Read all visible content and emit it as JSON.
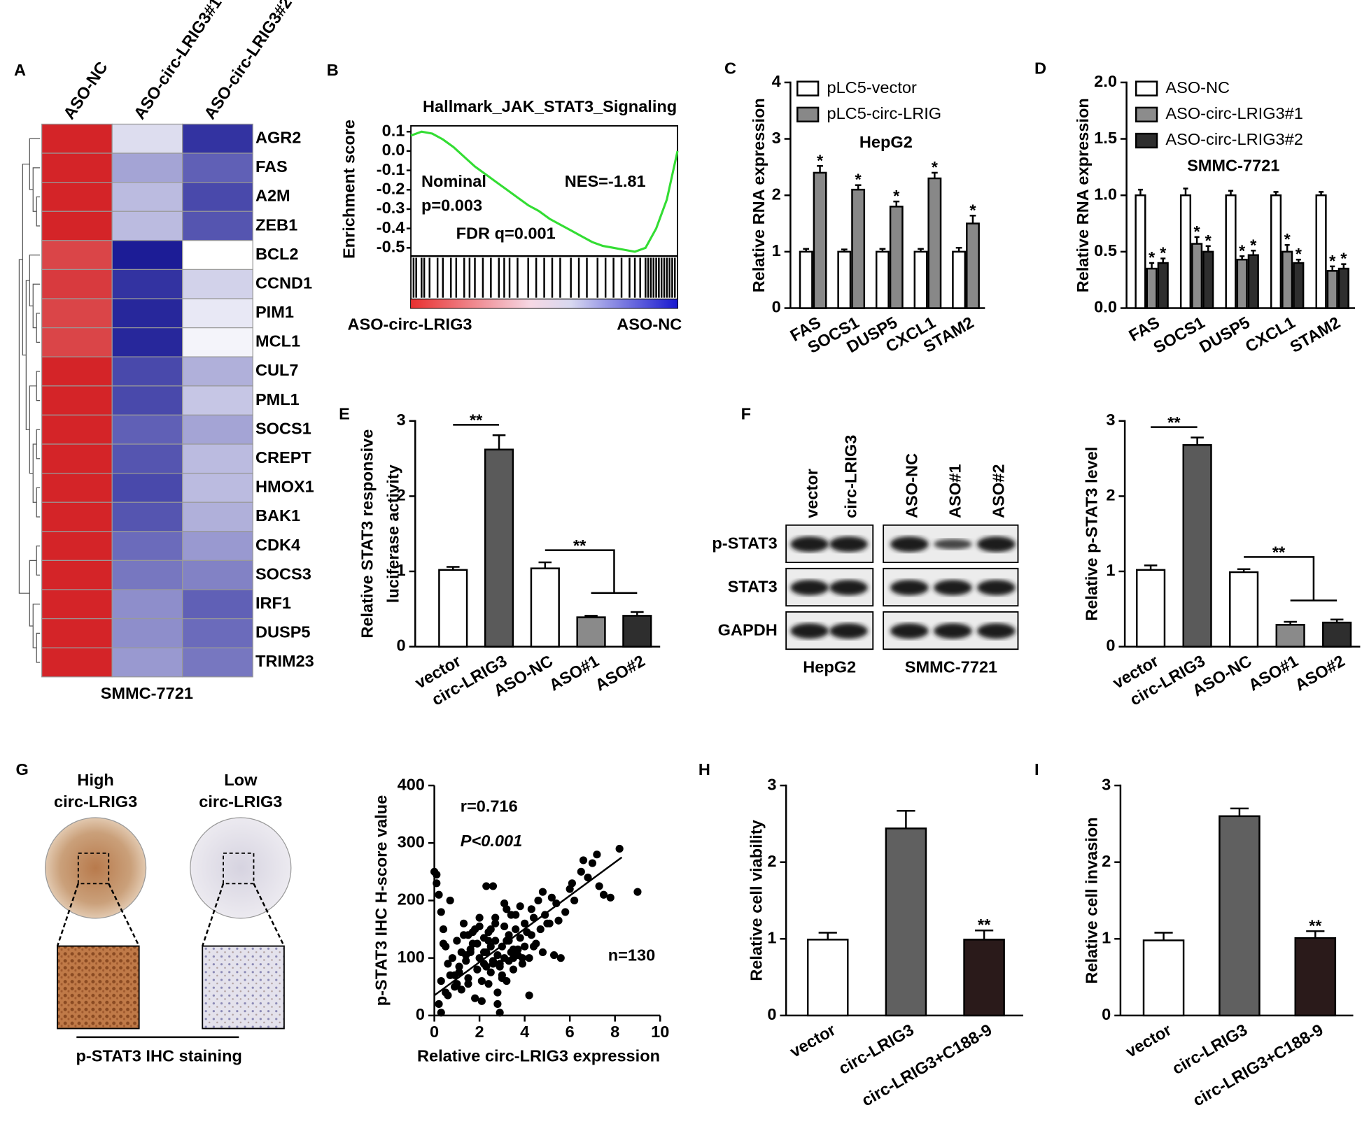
{
  "chart_data": [
    {
      "type": "heatmap",
      "panel": "A",
      "columns": [
        "ASO-NC",
        "ASO-circ-LRIG3#1",
        "ASO-circ-LRIG3#2"
      ],
      "rows": [
        "AGR2",
        "FAS",
        "A2M",
        "ZEB1",
        "BCL2",
        "CCND1",
        "PIM1",
        "MCL1",
        "CUL7",
        "PML1",
        "SOCS1",
        "CREPT",
        "HMOX1",
        "BAK1",
        "CDK4",
        "SOCS3",
        "IRF1",
        "DUSP5",
        "TRIM23"
      ],
      "row_label_colors": [
        "#000000",
        "#e02020",
        "#e02020",
        "#000000",
        "#000000",
        "#000000",
        "#e02020",
        "#000000",
        "#000000",
        "#000000",
        "#e02020",
        "#000000",
        "#e02020",
        "#e02020",
        "#000000",
        "#e02020",
        "#e02020",
        "#e02020",
        "#000000"
      ],
      "values": [
        [
          1,
          -0.15,
          -0.9
        ],
        [
          1,
          -0.4,
          -0.7
        ],
        [
          1,
          -0.3,
          -0.8
        ],
        [
          1,
          -0.3,
          -0.75
        ],
        [
          0.85,
          -1,
          0
        ],
        [
          0.9,
          -0.9,
          -0.2
        ],
        [
          0.85,
          -0.95,
          -0.1
        ],
        [
          0.85,
          -0.95,
          -0.05
        ],
        [
          1,
          -0.8,
          -0.35
        ],
        [
          1,
          -0.8,
          -0.25
        ],
        [
          1,
          -0.7,
          -0.4
        ],
        [
          1,
          -0.75,
          -0.3
        ],
        [
          1,
          -0.8,
          -0.3
        ],
        [
          1,
          -0.75,
          -0.35
        ],
        [
          1,
          -0.65,
          -0.45
        ],
        [
          1,
          -0.6,
          -0.55
        ],
        [
          1,
          -0.5,
          -0.7
        ],
        [
          1,
          -0.5,
          -0.65
        ],
        [
          1,
          -0.45,
          -0.6
        ]
      ],
      "caption": "SMMC-7721"
    },
    {
      "type": "gsea",
      "panel": "B",
      "title": "Hallmark_JAK_STAT3_Signaling",
      "ylabel": "Enrichment score",
      "color": "#33dd33",
      "ylim": [
        -0.52,
        0.13
      ],
      "yticks": [
        0.1,
        {
          "value": 0,
          "label": "0.0"
        },
        -0.1,
        -0.2,
        -0.3,
        -0.4,
        -0.5
      ],
      "values": [
        0.08,
        0.1,
        0.09,
        0.06,
        0.02,
        -0.03,
        -0.08,
        -0.12,
        -0.16,
        -0.2,
        -0.24,
        -0.28,
        -0.31,
        -0.35,
        -0.38,
        -0.41,
        -0.44,
        -0.47,
        -0.49,
        -0.5,
        -0.51,
        -0.52,
        -0.5,
        -0.4,
        -0.25,
        0
      ],
      "hits": [
        0.01,
        0.02,
        0.04,
        0.05,
        0.07,
        0.1,
        0.12,
        0.15,
        0.17,
        0.2,
        0.22,
        0.24,
        0.27,
        0.3,
        0.33,
        0.35,
        0.37,
        0.4,
        0.44,
        0.47,
        0.5,
        0.53,
        0.56,
        0.6,
        0.63,
        0.66,
        0.7,
        0.73,
        0.76,
        0.79,
        0.82,
        0.84,
        0.86,
        0.88,
        0.89,
        0.9,
        0.91,
        0.92,
        0.93,
        0.94,
        0.95,
        0.96,
        0.97,
        0.98,
        0.99
      ],
      "annotations": [
        "Nominal",
        "p=0.003",
        "NES=-1.81",
        "FDR q=0.001"
      ],
      "x_labels": [
        "ASO-circ-LRIG3",
        "ASO-NC"
      ]
    },
    {
      "type": "bar",
      "panel": "C",
      "subtitle": "HepG2",
      "ylabel": "Relative RNA expression",
      "categories": [
        "FAS",
        "SOCS1",
        "DUSP5",
        "CXCL1",
        "STAM2"
      ],
      "ylim": [
        0,
        4
      ],
      "yticks": [
        0,
        1,
        2,
        3,
        4
      ],
      "series": [
        {
          "name": "pLC5-vector",
          "color": "#ffffff",
          "values": [
            1,
            1,
            1,
            1,
            1
          ],
          "errors": [
            0.05,
            0.04,
            0.05,
            0.05,
            0.07
          ]
        },
        {
          "name": "pLC5-circ-LRIG",
          "color": "#888888",
          "values": [
            2.4,
            2.1,
            1.8,
            2.3,
            1.5
          ],
          "errors": [
            0.12,
            0.08,
            0.09,
            0.1,
            0.14
          ],
          "labels": [
            "*",
            "*",
            "*",
            "*",
            "*"
          ]
        }
      ]
    },
    {
      "type": "bar",
      "panel": "D",
      "subtitle": "SMMC-7721",
      "ylabel": "Relative RNA expression",
      "categories": [
        "FAS",
        "SOCS1",
        "DUSP5",
        "CXCL1",
        "STAM2"
      ],
      "ylim": [
        0,
        2
      ],
      "yticks": [
        {
          "value": 0,
          "label": "0.0"
        },
        0.5,
        {
          "value": 1,
          "label": "1.0"
        },
        1.5,
        {
          "value": 2,
          "label": "2.0"
        }
      ],
      "series": [
        {
          "name": "ASO-NC",
          "color": "#ffffff",
          "values": [
            1,
            1,
            1,
            1,
            1
          ],
          "errors": [
            0.05,
            0.06,
            0.04,
            0.03,
            0.03
          ]
        },
        {
          "name": "ASO-circ-LRIG3#1",
          "color": "#8c8c8c",
          "values": [
            0.35,
            0.57,
            0.43,
            0.5,
            0.33
          ],
          "errors": [
            0.05,
            0.06,
            0.03,
            0.06,
            0.04
          ],
          "labels": [
            "*",
            "*",
            "*",
            "*",
            "*"
          ]
        },
        {
          "name": "ASO-circ-LRIG3#2",
          "color": "#2e2e2e",
          "values": [
            0.4,
            0.5,
            0.47,
            0.4,
            0.35
          ],
          "errors": [
            0.04,
            0.05,
            0.04,
            0.03,
            0.04
          ],
          "labels": [
            "*",
            "*",
            "*",
            "*",
            "*"
          ]
        }
      ]
    },
    {
      "type": "bar",
      "panel": "E",
      "ylabel": [
        "Relative STAT3 responsive",
        "luciferase activity"
      ],
      "categories": [
        "vector",
        "circ-LRIG3",
        "ASO-NC",
        "ASO#1",
        "ASO#2"
      ],
      "ylim": [
        0,
        3
      ],
      "yticks": [
        0,
        1,
        2,
        3
      ],
      "values": [
        1.02,
        2.62,
        1.04,
        0.39,
        0.41
      ],
      "errors": [
        0.04,
        0.19,
        0.08,
        0.02,
        0.05
      ],
      "colors": [
        "#ffffff",
        "#5a5a5a",
        "#ffffff",
        "#8a8a8a",
        "#2e2e2e"
      ],
      "annotations": [
        "**",
        "**"
      ]
    },
    {
      "type": "bar",
      "ylabel": "Relative p-STAT3 level",
      "categories": [
        "vector",
        "circ-LRIG3",
        "ASO-NC",
        "ASO#1",
        "ASO#2"
      ],
      "ylim": [
        0,
        3
      ],
      "yticks": [
        0,
        1,
        2,
        3
      ],
      "values": [
        1.02,
        2.68,
        0.99,
        0.29,
        0.32
      ],
      "errors": [
        0.06,
        0.1,
        0.04,
        0.04,
        0.04
      ],
      "colors": [
        "#ffffff",
        "#5a5a5a",
        "#ffffff",
        "#8a8a8a",
        "#2e2e2e"
      ],
      "annotations": [
        "**",
        "**"
      ]
    },
    {
      "type": "scatter",
      "xlabel": "Relative circ-LRIG3 expression",
      "ylabel": "p-STAT3 IHC H-score value",
      "xlim": [
        0,
        10
      ],
      "ylim": [
        0,
        400
      ],
      "xticks": [
        0,
        2,
        4,
        6,
        8,
        10
      ],
      "yticks": [
        0,
        100,
        200,
        300,
        400
      ],
      "annotations": [
        "r=0.716",
        "P<0.001",
        "n=130"
      ],
      "x": [
        0.1,
        0.1,
        0.2,
        0.3,
        0.3,
        0.4,
        0.5,
        0.5,
        0.6,
        0.7,
        0.8,
        0.9,
        1.0,
        1.0,
        1.1,
        1.2,
        1.2,
        1.3,
        1.4,
        1.5,
        1.5,
        1.6,
        1.7,
        1.8,
        1.8,
        1.9,
        2.0,
        2.0,
        2.1,
        2.2,
        2.2,
        2.3,
        2.3,
        2.4,
        2.4,
        2.5,
        2.5,
        2.6,
        2.6,
        2.7,
        2.7,
        2.8,
        2.8,
        2.9,
        2.9,
        3.0,
        3.0,
        3.1,
        3.1,
        3.2,
        3.2,
        3.3,
        3.3,
        3.4,
        3.4,
        3.5,
        3.5,
        3.6,
        3.7,
        3.8,
        3.8,
        3.9,
        4.0,
        4.0,
        4.1,
        4.2,
        4.2,
        4.3,
        4.4,
        4.5,
        4.6,
        4.7,
        4.8,
        4.9,
        5.0,
        5.2,
        5.3,
        5.5,
        5.6,
        5.8,
        6.0,
        6.2,
        6.5,
        6.8,
        7.0,
        7.2,
        7.5,
        7.8,
        8.2,
        9.0,
        0,
        0.2,
        0.6,
        1.1,
        1.6,
        2.1,
        2.5,
        2.9,
        3.3,
        3.7,
        1.3,
        1.9,
        2.3,
        2.7,
        3.1,
        3.5,
        0.9,
        1.7,
        2.6,
        3.6,
        0.4,
        1.4,
        2.4,
        3.0,
        4.3,
        5.1,
        6.1,
        7.3,
        2.0,
        2.8,
        4.8,
        5.4,
        6.6,
        3.9,
        1.5,
        0.7,
        2.2,
        3.2,
        4.4,
        0.3
      ],
      "y": [
        245,
        230,
        210,
        180,
        60,
        150,
        120,
        40,
        90,
        200,
        100,
        70,
        55,
        130,
        85,
        110,
        45,
        160,
        95,
        140,
        65,
        115,
        125,
        30,
        150,
        80,
        100,
        170,
        60,
        135,
        90,
        225,
        110,
        55,
        145,
        120,
        75,
        225,
        95,
        160,
        130,
        40,
        105,
        5,
        85,
        120,
        70,
        100,
        155,
        130,
        60,
        95,
        140,
        110,
        175,
        80,
        115,
        150,
        105,
        190,
        135,
        90,
        160,
        120,
        145,
        35,
        100,
        185,
        170,
        125,
        200,
        150,
        110,
        175,
        160,
        205,
        105,
        165,
        100,
        180,
        220,
        200,
        250,
        240,
        265,
        280,
        210,
        205,
        290,
        215,
        250,
        20,
        35,
        75,
        110,
        25,
        150,
        90,
        130,
        115,
        140,
        125,
        85,
        170,
        195,
        100,
        50,
        145,
        90,
        175,
        125,
        105,
        130,
        65,
        140,
        160,
        230,
        225,
        155,
        20,
        215,
        195,
        270,
        100,
        55,
        70,
        110,
        185,
        120,
        5
      ],
      "fit": {
        "x": [
          0,
          8.3
        ],
        "y": [
          35,
          275
        ]
      }
    },
    {
      "type": "bar",
      "panel": "H",
      "ylabel": "Relative cell viability",
      "categories": [
        "vector",
        "circ-LRIG3",
        "circ-LRIG3+C188-9"
      ],
      "ylim": [
        0,
        3
      ],
      "yticks": [
        0,
        1,
        2,
        3
      ],
      "values": [
        0.99,
        2.44,
        0.99
      ],
      "errors": [
        0.09,
        0.23,
        0.12
      ],
      "colors": [
        "#ffffff",
        "#606060",
        "#2a1a1a"
      ],
      "labels": [
        null,
        null,
        "**"
      ]
    },
    {
      "type": "bar",
      "panel": "I",
      "ylabel": "Relative cell invasion",
      "categories": [
        "vector",
        "circ-LRIG3",
        "circ-LRIG3+C188-9"
      ],
      "ylim": [
        0,
        3
      ],
      "yticks": [
        0,
        1,
        2,
        3
      ],
      "values": [
        0.98,
        2.6,
        1.01
      ],
      "errors": [
        0.1,
        0.1,
        0.09
      ],
      "colors": [
        "#ffffff",
        "#606060",
        "#2a1a1a"
      ],
      "labels": [
        null,
        null,
        "**"
      ]
    }
  ],
  "blot": {
    "panel": "F",
    "lanes": [
      "vector",
      "circ-LRIG3",
      "ASO-NC",
      "ASO#1",
      "ASO#2"
    ],
    "rows": [
      "p-STAT3",
      "STAT3",
      "GAPDH"
    ],
    "groups": [
      "HepG2",
      "SMMC-7721"
    ]
  },
  "ihc": {
    "panel": "G",
    "samples": [
      [
        "High",
        "circ-LRIG3"
      ],
      [
        "Low",
        "circ-LRIG3"
      ]
    ],
    "caption": "p-STAT3 IHC staining"
  }
}
